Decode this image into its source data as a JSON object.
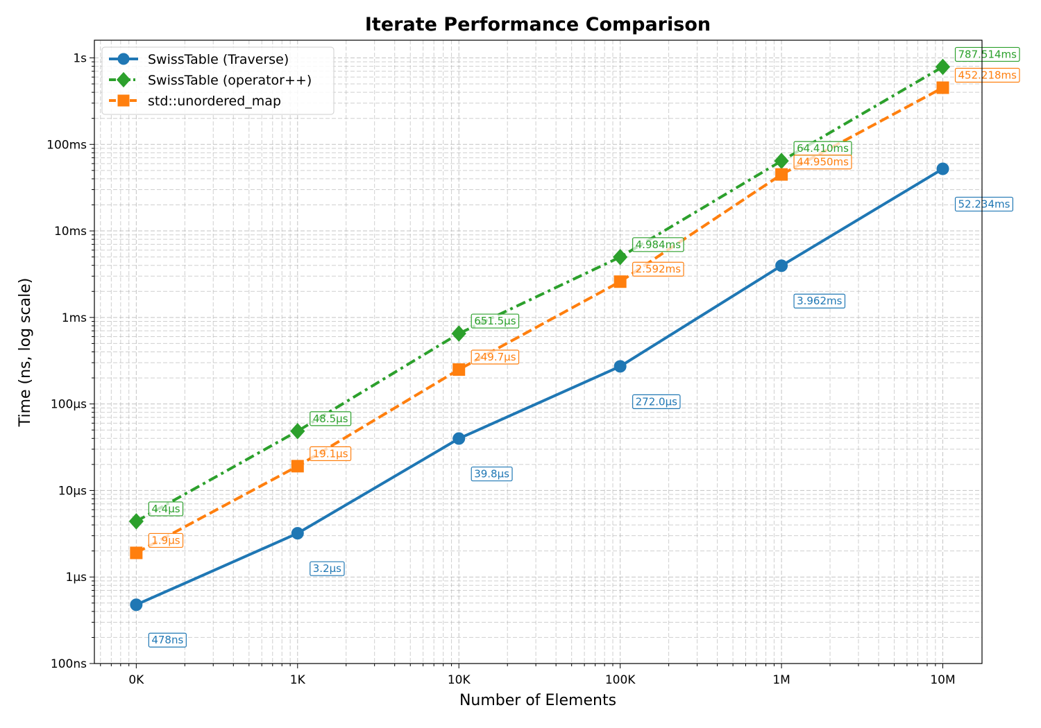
{
  "chart_data": {
    "type": "line",
    "title": "Iterate Performance Comparison",
    "xlabel": "Number of Elements",
    "ylabel": "Time (ns, log scale)",
    "x_scale": "log",
    "y_scale": "log",
    "x": [
      100,
      1000,
      10000,
      100000,
      1000000,
      10000000
    ],
    "x_tick_labels": [
      "0K",
      "1K",
      "10K",
      "100K",
      "1M",
      "10M"
    ],
    "xlim": [
      55,
      17500000
    ],
    "ylim": [
      100,
      1600000000
    ],
    "y_ticks": [
      100,
      1000,
      10000,
      100000,
      1000000,
      10000000,
      100000000,
      1000000000
    ],
    "y_tick_labels": [
      "100ns",
      "1µs",
      "10µs",
      "100µs",
      "1ms",
      "10ms",
      "100ms",
      "1s"
    ],
    "grid": true,
    "legend_position": "top-left",
    "series": [
      {
        "name": "SwissTable (Traverse)",
        "color": "#1f77b4",
        "marker": "circle",
        "line_style": "solid",
        "values": [
          478,
          3200,
          39800,
          272000,
          3962000,
          52234000
        ],
        "labels": [
          "478ns",
          "3.2µs",
          "39.8µs",
          "272.0µs",
          "3.962ms",
          "52.234ms"
        ],
        "label_position": "below"
      },
      {
        "name": "SwissTable (operator++)",
        "color": "#2ca02c",
        "marker": "diamond",
        "line_style": "dash-dot",
        "values": [
          4400,
          48500,
          651500,
          4984000,
          64410000,
          787514000
        ],
        "labels": [
          "4.4µs",
          "48.5µs",
          "651.5µs",
          "4.984ms",
          "64.410ms",
          "787.514ms"
        ],
        "label_position": "above"
      },
      {
        "name": "std::unordered_map",
        "color": "#ff7f0e",
        "marker": "square",
        "line_style": "dashed",
        "values": [
          1900,
          19100,
          249700,
          2592000,
          44950000,
          452218000
        ],
        "labels": [
          "1.9µs",
          "19.1µs",
          "249.7µs",
          "2.592ms",
          "44.950ms",
          "452.218ms"
        ],
        "label_position": "above"
      }
    ]
  }
}
